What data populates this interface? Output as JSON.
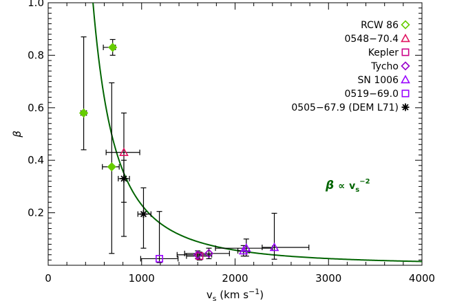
{
  "chart_data": {
    "type": "scatter",
    "xlabel": "v",
    "xlabel_sub": "s",
    "xlabel_units": " (km s",
    "xlabel_units_sup": "−1",
    "xlabel_units_end": ")",
    "ylabel": "β",
    "xlim": [
      0,
      4000
    ],
    "ylim": [
      0.0,
      1.0
    ],
    "x_ticks": [
      0,
      1000,
      2000,
      3000,
      4000
    ],
    "x_tick_labels": [
      "0",
      "1000",
      "2000",
      "3000",
      "4000"
    ],
    "y_ticks": [
      0.2,
      0.4,
      0.6,
      0.8,
      1.0
    ],
    "y_tick_labels": [
      "0.2",
      "0.4",
      "0.6",
      "0.8",
      "1.0"
    ],
    "grid": false,
    "legend_position": "top-right",
    "model_curve": {
      "formula": "beta = 2.3e5 / vs^2",
      "coefficient": 230000,
      "color": "#006400",
      "label_beta": "β",
      "label_prop": "∝",
      "label_v": "v",
      "label_sub": "s",
      "label_sup": "−2"
    },
    "series": [
      {
        "name": "RCW 86",
        "marker": "diamond",
        "color": "#66CC00",
        "filled": true,
        "points": [
          {
            "x": 380,
            "y": 0.58,
            "xerr": [
              30,
              30
            ],
            "yerr": [
              0.14,
              0.29
            ]
          },
          {
            "x": 690,
            "y": 0.83,
            "xerr": [
              100,
              30
            ],
            "yerr": [
              0.03,
              0.03
            ]
          },
          {
            "x": 680,
            "y": 0.375,
            "xerr": [
              100,
              80
            ],
            "yerr": [
              0.33,
              0.32
            ]
          }
        ]
      },
      {
        "name": "0548−70.4",
        "marker": "triangle",
        "color": "#E0115F",
        "filled": false,
        "points": [
          {
            "x": 810,
            "y": 0.43,
            "xerr": [
              190,
              170
            ],
            "yerr": [
              0.19,
              0.15
            ]
          }
        ]
      },
      {
        "name": "Kepler",
        "marker": "square",
        "color": "#CC0088",
        "filled": false,
        "points": [
          {
            "x": 1620,
            "y": 0.035,
            "xerr": [
              140,
              100
            ],
            "yerr": [
              0.015,
              0.015
            ]
          }
        ]
      },
      {
        "name": "Tycho",
        "marker": "diamond",
        "color": "#9900CC",
        "filled": false,
        "points": [
          {
            "x": 1600,
            "y": 0.04,
            "xerr": [
              220,
              150
            ],
            "yerr": [
              0.015,
              0.015
            ]
          },
          {
            "x": 1720,
            "y": 0.045,
            "xerr": [
              260,
              220
            ],
            "yerr": [
              0.02,
              0.02
            ]
          }
        ]
      },
      {
        "name": "SN 1006",
        "marker": "triangle",
        "color": "#9900FF",
        "filled": false,
        "points": [
          {
            "x": 2120,
            "y": 0.065,
            "xerr": [
              330,
              280
            ],
            "yerr": [
              0.03,
              0.035
            ]
          },
          {
            "x": 2090,
            "y": 0.055,
            "xerr": [
              60,
              60
            ],
            "yerr": [
              0.02,
              0.02
            ]
          },
          {
            "x": 2420,
            "y": 0.068,
            "xerr": [
              130,
              370
            ],
            "yerr": [
              0.045,
              0.13
            ]
          }
        ]
      },
      {
        "name": "0519−69.0",
        "marker": "square",
        "color": "#9900FF",
        "filled": false,
        "points": [
          {
            "x": 1190,
            "y": 0.025,
            "xerr": [
              200,
              200
            ],
            "yerr": [
              0.015,
              0.18
            ]
          }
        ]
      },
      {
        "name": "0505−67.9 (DEM L71)",
        "marker": "asterisk",
        "color": "#000000",
        "filled": false,
        "points": [
          {
            "x": 810,
            "y": 0.33,
            "xerr": [
              60,
              60
            ],
            "yerr": [
              0.22,
              0.07
            ]
          },
          {
            "x": 1020,
            "y": 0.195,
            "xerr": [
              60,
              80
            ],
            "yerr": [
              0.13,
              0.1
            ]
          }
        ]
      }
    ]
  }
}
